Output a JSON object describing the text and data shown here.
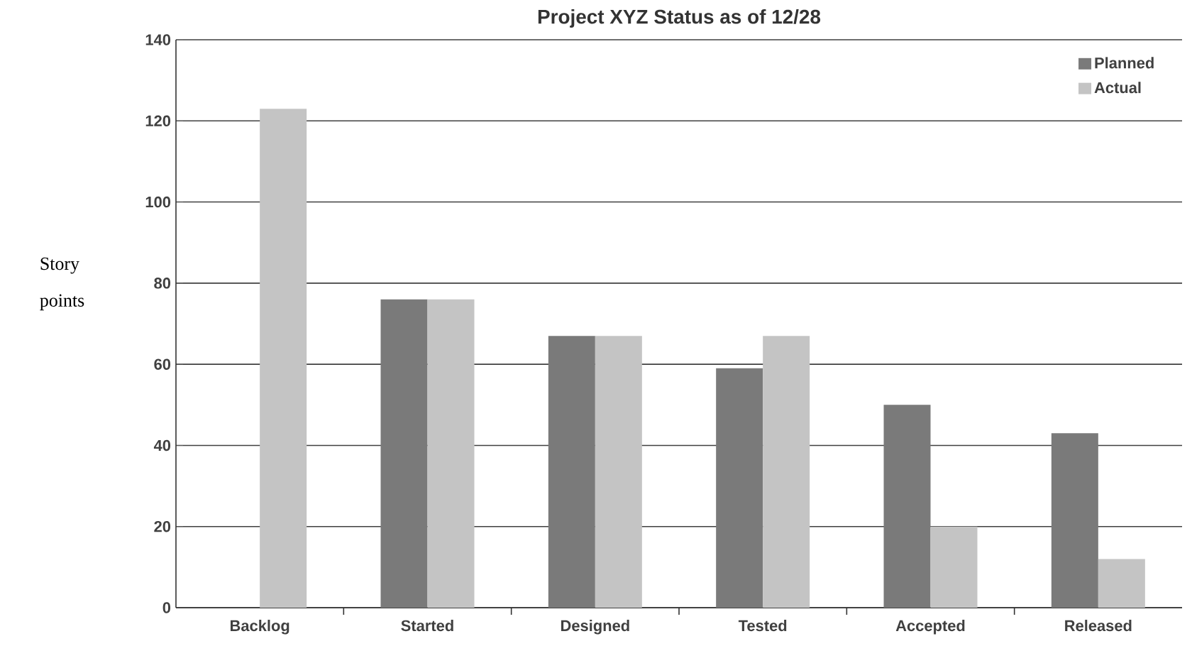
{
  "chart_data": {
    "type": "bar",
    "title": "Project XYZ Status as of 12/28",
    "ylabel": "Story points",
    "categories": [
      "Backlog",
      "Started",
      "Designed",
      "Tested",
      "Accepted",
      "Released"
    ],
    "series": [
      {
        "name": "Planned",
        "color": "#7a7a7a",
        "values": [
          null,
          76,
          67,
          59,
          50,
          43
        ]
      },
      {
        "name": "Actual",
        "color": "#c4c4c4",
        "values": [
          123,
          76,
          67,
          67,
          20,
          12
        ]
      }
    ],
    "ylim": [
      0,
      140
    ],
    "yticks": [
      0,
      20,
      40,
      60,
      80,
      100,
      120,
      140
    ],
    "grid": "y",
    "legend": "top right"
  }
}
